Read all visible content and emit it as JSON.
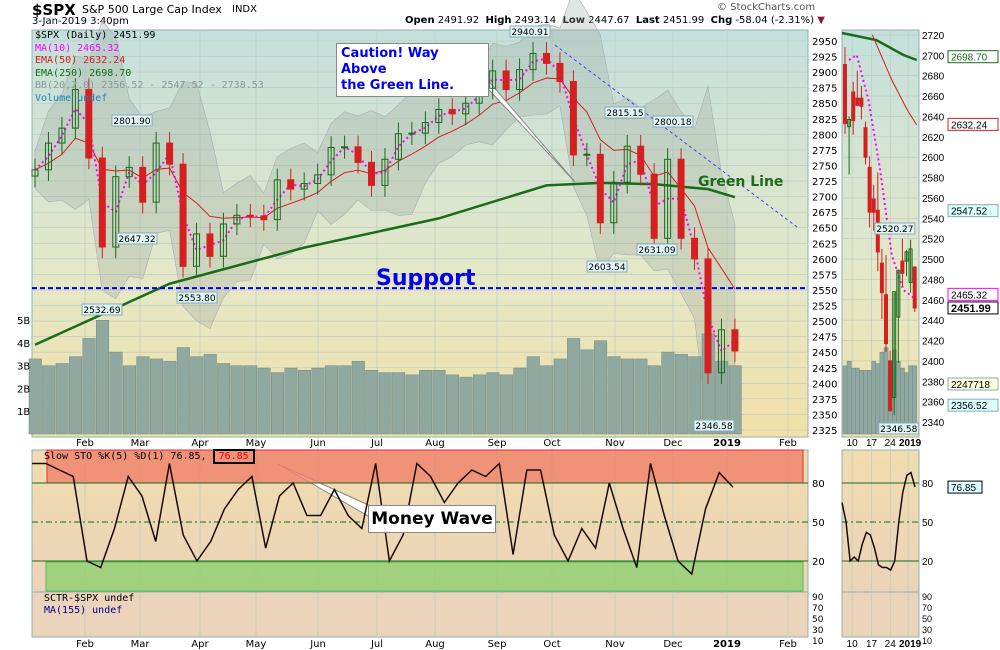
{
  "header": {
    "symbol": "$SPX",
    "name": "S&P 500 Large Cap Index",
    "exchange": "INDX",
    "datetime": "3-Jan-2019 3:40pm",
    "copyright": "© StockCharts.com",
    "open_label": "Open",
    "open": "2491.92",
    "high_label": "High",
    "high": "2493.14",
    "low_label": "Low",
    "low": "2447.67",
    "last_label": "Last",
    "last": "2451.99",
    "chg_label": "Chg",
    "chg": "-58.04 (-2.31%)",
    "chg_icon": "down-triangle-icon"
  },
  "legend": {
    "price": "$SPX (Daily) 2451.99",
    "ma10": "MA(10) 2465.32",
    "ema50": "EMA(50) 2632.24",
    "ema250": "EMA(250) 2698.70",
    "bb": "BB(20,2.0) 2356.52 - 2547.52 - 2738.53",
    "volume": "Volume undef"
  },
  "stoch_legend": {
    "text": "Slow STO %K(5) %D(1) 76.85, ",
    "highlight": "76.85"
  },
  "sctr_legend": {
    "sctr": "SCTR-$SPX undef",
    "ma": "MA(155) undef"
  },
  "annotations": {
    "caution_1": "Caution! Way Above",
    "caution_2": "the Green Line.",
    "green_line": "Green Line",
    "support": "Support",
    "money_wave": "Money Wave"
  },
  "colors": {
    "up": "#1a6b1a",
    "down": "#d42020",
    "ma10": "#ff00ff",
    "ema50": "#d42020",
    "ema250": "#1a6b1a",
    "support": "#0000ee",
    "trend": "#3344ff",
    "overbought": "#f0806a",
    "oversold": "#8fd070"
  },
  "chart_data": [
    {
      "type": "candlestick",
      "title": "$SPX (Daily)",
      "x_ticks": [
        "Feb",
        "Mar",
        "Apr",
        "May",
        "Jun",
        "Jul",
        "Aug",
        "Sep",
        "Oct",
        "Nov",
        "Dec",
        "2019",
        "Feb"
      ],
      "y_ticks": [
        2950,
        2925,
        2900,
        2875,
        2850,
        2825,
        2800,
        2775,
        2750,
        2725,
        2700,
        2675,
        2650,
        2625,
        2600,
        2575,
        2550,
        2525,
        2500,
        2475,
        2450,
        2425,
        2400,
        2375,
        2350,
        2325
      ],
      "ylim": [
        2325,
        2960
      ],
      "weekly_close": [
        2743,
        2786,
        2810,
        2872,
        2762,
        2619,
        2732,
        2747,
        2691,
        2786,
        2752,
        2588,
        2640,
        2604,
        2656,
        2670,
        2669,
        2663,
        2727,
        2712,
        2721,
        2735,
        2779,
        2780,
        2755,
        2718,
        2760,
        2801,
        2802,
        2819,
        2840,
        2833,
        2850,
        2874,
        2902,
        2872,
        2904,
        2930,
        2914,
        2885,
        2767,
        2768,
        2658,
        2723,
        2781,
        2736,
        2633,
        2760,
        2633,
        2600,
        2417,
        2486,
        2452
      ],
      "ema250_points": [
        [
          0,
          2462
        ],
        [
          10,
          2560
        ],
        [
          20,
          2618
        ],
        [
          30,
          2665
        ],
        [
          38,
          2718
        ],
        [
          42,
          2722
        ],
        [
          46,
          2720
        ],
        [
          50,
          2712
        ],
        [
          52,
          2699
        ]
      ],
      "volume_billions": [
        3.3,
        3.0,
        3.1,
        3.4,
        4.2,
        5.0,
        3.6,
        3.0,
        3.4,
        3.3,
        3.2,
        3.8,
        3.4,
        3.5,
        3.1,
        3.0,
        3.0,
        2.9,
        2.7,
        2.9,
        2.8,
        2.9,
        3.0,
        3.0,
        3.2,
        2.8,
        2.7,
        2.7,
        2.6,
        2.8,
        2.8,
        2.6,
        2.5,
        2.6,
        2.7,
        2.6,
        2.9,
        3.4,
        3.0,
        3.3,
        4.2,
        3.7,
        4.1,
        3.4,
        3.3,
        3.3,
        3.0,
        3.6,
        3.5,
        3.4,
        4.4,
        3.2,
        3.0
      ],
      "volume_ticks": [
        "5B",
        "4B",
        "3B",
        "2B",
        "1B"
      ],
      "support": 2553,
      "price_labels": [
        "2940.91",
        "2801.90",
        "2647.32",
        "2532.69",
        "2553.80",
        "2815.15",
        "2800.18",
        "2603.54",
        "2631.09",
        "2346.58"
      ],
      "last_values": {
        "ema250": 2698.7,
        "ema50": 2632.24,
        "ma10": 2465.32,
        "close": 2451.99
      }
    },
    {
      "type": "candlestick",
      "title": "$SPX daily zoom",
      "x_ticks": [
        "10",
        "17",
        "24",
        "2019"
      ],
      "y_ticks": [
        2720,
        2700,
        2680,
        2660,
        2640,
        2620,
        2600,
        2580,
        2560,
        2540,
        2520,
        2500,
        2480,
        2460,
        2440,
        2420,
        2400,
        2380,
        2360,
        2340
      ],
      "ylim": [
        2330,
        2725
      ],
      "ohlc": [
        [
          2691,
          2708,
          2623,
          2633
        ],
        [
          2630,
          2640,
          2583,
          2637
        ],
        [
          2664,
          2674,
          2622,
          2636
        ],
        [
          2658,
          2685,
          2650,
          2651
        ],
        [
          2658,
          2670,
          2637,
          2650
        ],
        [
          2629,
          2635,
          2593,
          2600
        ],
        [
          2590,
          2601,
          2531,
          2546
        ],
        [
          2559,
          2573,
          2528,
          2546
        ],
        [
          2548,
          2585,
          2488,
          2507
        ],
        [
          2496,
          2510,
          2441,
          2467
        ],
        [
          2465,
          2504,
          2409,
          2417
        ],
        [
          2400,
          2410,
          2351,
          2351
        ],
        [
          2364,
          2467,
          2347,
          2468
        ],
        [
          2443,
          2489,
          2398,
          2489
        ],
        [
          2498,
          2520,
          2473,
          2486
        ],
        [
          2498,
          2509,
          2483,
          2507
        ],
        [
          2477,
          2519,
          2467,
          2510
        ],
        [
          2492,
          2493,
          2448,
          2452
        ]
      ],
      "right_labels": [
        "2698.70",
        "2632.24",
        "2547.52",
        "2465.32",
        "2451.99",
        "2247718",
        "2356.52"
      ],
      "price_labels": [
        "2520.27",
        "2346.58"
      ]
    },
    {
      "type": "line",
      "title": "Slow STO %K(5) %D(1)",
      "ylim": [
        0,
        100
      ],
      "y_ticks": [
        80,
        50,
        20
      ],
      "values": [
        95,
        95,
        90,
        85,
        20,
        15,
        45,
        85,
        70,
        35,
        95,
        40,
        20,
        35,
        60,
        75,
        85,
        30,
        70,
        80,
        55,
        55,
        75,
        55,
        45,
        95,
        20,
        40,
        95,
        85,
        65,
        80,
        90,
        85,
        95,
        25,
        90,
        90,
        40,
        20,
        45,
        30,
        80,
        45,
        15,
        95,
        55,
        20,
        10,
        60,
        88,
        76.85
      ]
    },
    {
      "type": "line",
      "title": "Slow STO zoom",
      "ylim": [
        0,
        100
      ],
      "y_ticks": [
        80,
        50,
        20
      ],
      "values": [
        65,
        50,
        20,
        23,
        20,
        33,
        42,
        40,
        30,
        17,
        15,
        15,
        13,
        20,
        50,
        73,
        86,
        88,
        76.85
      ],
      "last_label": "76.85"
    },
    {
      "type": "line",
      "title": "SCTR",
      "y_ticks": [
        "90",
        "70",
        "50",
        "30",
        "10"
      ]
    }
  ]
}
